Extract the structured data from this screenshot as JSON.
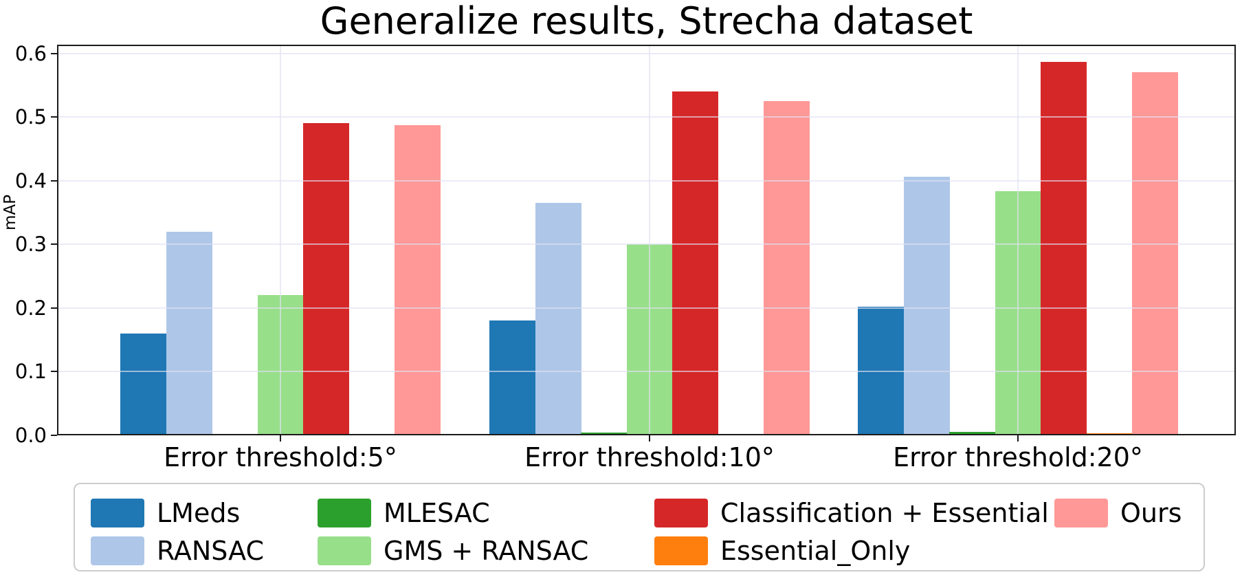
{
  "title": "Generalize results, Strecha dataset",
  "chart_data": {
    "type": "bar",
    "title": "Generalize results, Strecha dataset",
    "xlabel": "",
    "ylabel": "mAP",
    "ylim": [
      0,
      0.614
    ],
    "yticks": [
      0.0,
      0.1,
      0.2,
      0.3,
      0.4,
      0.5,
      0.6
    ],
    "grid": true,
    "legend_position": "bottom",
    "categories": [
      "Error threshold:5°",
      "Error threshold:10°",
      "Error threshold:20°"
    ],
    "series": [
      {
        "name": "LMeds",
        "color": "#1f77b4",
        "values": [
          0.16,
          0.18,
          0.202
        ]
      },
      {
        "name": "RANSAC",
        "color": "#aec7e8",
        "values": [
          0.32,
          0.365,
          0.406
        ]
      },
      {
        "name": "MLESAC",
        "color": "#2ca02c",
        "values": [
          0.002,
          0.004,
          0.005
        ]
      },
      {
        "name": "GMS + RANSAC",
        "color": "#98df8a",
        "values": [
          0.22,
          0.301,
          0.384
        ]
      },
      {
        "name": "Classification + Essential",
        "color": "#d62728",
        "values": [
          0.491,
          0.54,
          0.587
        ]
      },
      {
        "name": "Essential_Only",
        "color": "#ff7f0e",
        "values": [
          0.001,
          0.001,
          0.003
        ]
      },
      {
        "name": "Ours",
        "color": "#ff9896",
        "values": [
          0.487,
          0.525,
          0.571
        ]
      }
    ]
  }
}
